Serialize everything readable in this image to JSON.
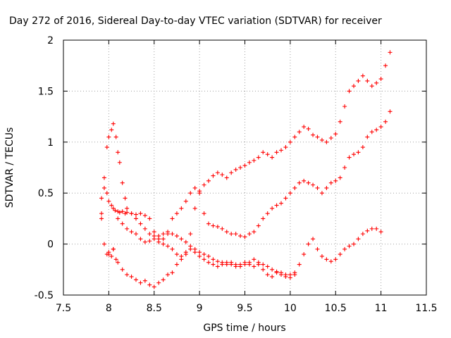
{
  "chart_data": {
    "type": "scatter",
    "title": "Day 272 of 2016, Sidereal Day-to-day VTEC variation (SDTVAR) for receiver",
    "xlabel": "GPS time / hours",
    "ylabel": "SDTVAR / TECUs",
    "xlim": [
      7.5,
      11.5
    ],
    "ylim": [
      -0.5,
      2
    ],
    "xticks": [
      "7.5",
      "8",
      "8.5",
      "9",
      "9.5",
      "10",
      "10.5",
      "11",
      "11.5"
    ],
    "yticks": [
      "-0.5",
      "0",
      "0.5",
      "1",
      "1.5",
      "2"
    ],
    "grid": true,
    "marker": "plus",
    "color": "#ff0000",
    "series": [
      {
        "x": [
          7.92,
          7.95,
          7.98,
          8.0,
          8.03,
          8.05,
          8.07,
          8.1,
          8.12,
          8.15,
          8.18,
          8.2,
          8.25,
          8.3,
          8.35,
          8.4,
          8.45,
          8.5,
          8.55,
          8.6,
          8.65,
          8.7,
          8.75,
          8.8,
          8.85,
          8.9,
          8.95,
          9.0,
          9.05,
          9.1,
          9.15,
          9.2,
          9.25,
          9.3,
          9.35,
          9.4,
          9.45,
          9.5,
          9.55,
          9.6,
          9.65,
          9.7,
          9.75,
          9.8,
          9.85,
          9.9,
          9.95,
          10.0,
          10.05,
          10.1,
          10.15,
          10.2,
          10.25,
          10.3,
          10.35,
          10.4,
          10.45,
          10.5,
          10.55,
          10.6,
          10.65,
          10.7,
          10.75,
          10.8,
          10.85,
          10.9,
          10.95,
          11.0,
          11.05,
          11.1
        ],
        "y": [
          0.45,
          0.55,
          0.5,
          0.42,
          0.38,
          0.35,
          0.33,
          0.32,
          0.31,
          0.32,
          0.3,
          0.31,
          0.3,
          0.29,
          0.3,
          0.28,
          0.25,
          0.12,
          0.02,
          0.05,
          0.1,
          0.25,
          0.3,
          0.35,
          0.42,
          0.5,
          0.55,
          0.52,
          0.58,
          0.62,
          0.67,
          0.7,
          0.68,
          0.65,
          0.7,
          0.73,
          0.75,
          0.77,
          0.8,
          0.82,
          0.85,
          0.9,
          0.88,
          0.85,
          0.9,
          0.92,
          0.95,
          1.0,
          1.05,
          1.1,
          1.15,
          1.13,
          1.07,
          1.05,
          1.02,
          1.0,
          1.04,
          1.08,
          1.2,
          1.35,
          1.5,
          1.55,
          1.6,
          1.65,
          1.6,
          1.55,
          1.58,
          1.62,
          1.75,
          1.88
        ]
      },
      {
        "x": [
          7.92,
          7.95,
          7.98,
          8.0,
          8.03,
          8.05,
          8.08,
          8.1,
          8.12,
          8.15,
          8.18,
          8.2,
          8.25,
          8.3,
          8.35,
          8.4,
          8.45,
          8.5,
          8.55,
          8.6,
          8.65,
          8.7,
          8.75,
          8.8,
          8.85,
          8.9,
          8.95,
          9.0,
          9.05,
          9.1,
          9.15,
          9.2,
          9.25,
          9.3,
          9.35,
          9.4,
          9.45,
          9.5,
          9.55,
          9.6,
          9.65,
          9.7,
          9.75,
          9.8,
          9.85,
          9.9,
          9.95,
          10.0,
          10.05,
          10.1,
          10.15,
          10.2,
          10.25,
          10.3,
          10.35,
          10.4,
          10.45,
          10.5,
          10.55,
          10.6,
          10.65,
          10.7,
          10.75,
          10.8,
          10.85,
          10.9,
          10.95,
          11.0,
          11.05,
          11.1
        ],
        "y": [
          0.3,
          0.65,
          0.95,
          1.05,
          1.12,
          1.18,
          1.05,
          0.9,
          0.8,
          0.6,
          0.45,
          0.35,
          0.3,
          0.25,
          0.2,
          0.15,
          0.1,
          0.08,
          0.05,
          0.0,
          -0.02,
          -0.05,
          -0.1,
          -0.12,
          -0.08,
          0.1,
          0.35,
          0.5,
          0.3,
          0.2,
          0.18,
          0.17,
          0.15,
          0.12,
          0.1,
          0.1,
          0.08,
          0.07,
          0.1,
          0.12,
          0.18,
          0.25,
          0.3,
          0.35,
          0.38,
          0.4,
          0.45,
          0.5,
          0.55,
          0.6,
          0.62,
          0.6,
          0.58,
          0.55,
          0.5,
          0.55,
          0.6,
          0.62,
          0.65,
          0.75,
          0.85,
          0.88,
          0.9,
          0.95,
          1.05,
          1.1,
          1.12,
          1.15,
          1.2,
          1.3
        ]
      },
      {
        "x": [
          7.92,
          7.95,
          7.98,
          8.0,
          8.03,
          8.05,
          8.08,
          8.1,
          8.15,
          8.2,
          8.25,
          8.3,
          8.35,
          8.4,
          8.45,
          8.5,
          8.55,
          8.6,
          8.65,
          8.7,
          8.75,
          8.8,
          8.85,
          8.9,
          8.95,
          9.0,
          9.05,
          9.1,
          9.15,
          9.2,
          9.25,
          9.3,
          9.35,
          9.4,
          9.45,
          9.5,
          9.55,
          9.6,
          9.65,
          9.7,
          9.75,
          9.8,
          9.85,
          9.9,
          9.95,
          10.0,
          10.05,
          10.1,
          10.15,
          10.2,
          10.25,
          10.3,
          10.35,
          10.4,
          10.45,
          10.5,
          10.55,
          10.6,
          10.65,
          10.7,
          10.75,
          10.8,
          10.85,
          10.9,
          10.95,
          11.0
        ],
        "y": [
          0.25,
          0.0,
          -0.1,
          -0.08,
          -0.12,
          -0.05,
          -0.15,
          -0.18,
          -0.25,
          -0.3,
          -0.32,
          -0.35,
          -0.38,
          -0.36,
          -0.4,
          -0.42,
          -0.38,
          -0.35,
          -0.3,
          -0.28,
          -0.2,
          -0.15,
          -0.1,
          -0.05,
          -0.08,
          -0.12,
          -0.15,
          -0.18,
          -0.2,
          -0.22,
          -0.2,
          -0.18,
          -0.2,
          -0.22,
          -0.2,
          -0.18,
          -0.2,
          -0.22,
          -0.2,
          -0.25,
          -0.3,
          -0.32,
          -0.28,
          -0.3,
          -0.32,
          -0.33,
          -0.3,
          -0.2,
          -0.1,
          0.0,
          0.05,
          -0.05,
          -0.12,
          -0.15,
          -0.17,
          -0.15,
          -0.1,
          -0.05,
          -0.02,
          0.0,
          0.05,
          0.1,
          0.13,
          0.15,
          0.15,
          0.12
        ]
      },
      {
        "x": [
          8.0,
          8.05,
          8.1,
          8.15,
          8.2,
          8.25,
          8.3,
          8.35,
          8.4,
          8.45,
          8.5,
          8.55,
          8.6,
          8.65,
          8.7,
          8.75,
          8.8,
          8.85,
          8.9,
          8.95,
          9.0,
          9.05,
          9.1,
          9.15,
          9.2,
          9.25,
          9.3,
          9.35,
          9.4,
          9.45,
          9.5,
          9.55,
          9.6,
          9.65,
          9.7,
          9.75,
          9.8,
          9.85,
          9.9,
          9.95,
          10.0,
          10.05
        ],
        "y": [
          -0.1,
          -0.05,
          0.25,
          0.2,
          0.15,
          0.12,
          0.1,
          0.05,
          0.02,
          0.03,
          0.05,
          0.08,
          0.1,
          0.12,
          0.1,
          0.08,
          0.05,
          0.02,
          -0.02,
          -0.05,
          -0.08,
          -0.1,
          -0.12,
          -0.15,
          -0.17,
          -0.18,
          -0.2,
          -0.18,
          -0.2,
          -0.22,
          -0.2,
          -0.18,
          -0.15,
          -0.18,
          -0.2,
          -0.22,
          -0.25,
          -0.27,
          -0.28,
          -0.3,
          -0.3,
          -0.28
        ]
      }
    ]
  }
}
